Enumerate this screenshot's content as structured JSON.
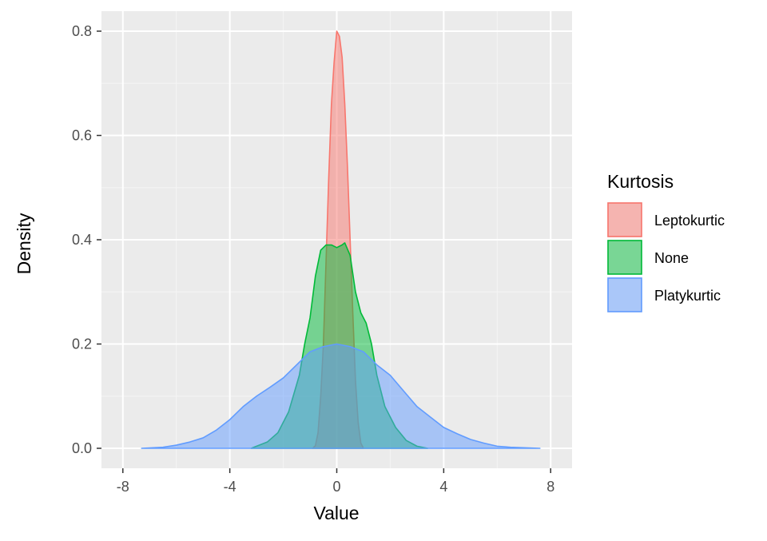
{
  "chart_data": {
    "type": "area",
    "subtype": "density",
    "xlabel": "Value",
    "ylabel": "Density",
    "xlim": [
      -8,
      8
    ],
    "ylim": [
      0,
      0.8
    ],
    "x_ticks": [
      -8,
      -4,
      0,
      4,
      8
    ],
    "y_ticks": [
      0.0,
      0.2,
      0.4,
      0.6,
      0.8
    ],
    "x_tick_labels": [
      "-8",
      "-4",
      "0",
      "4",
      "8"
    ],
    "y_tick_labels": [
      "0.0",
      "0.2",
      "0.4",
      "0.6",
      "0.8"
    ],
    "grid": true,
    "panel_background": "#ebebeb",
    "legend": {
      "title": "Kurtosis",
      "position": "right",
      "entries": [
        "Leptokurtic",
        "None",
        "Platykurtic"
      ]
    },
    "series": [
      {
        "name": "Leptokurtic",
        "fill": "#f8766d",
        "stroke": "#f8766d",
        "fill_opacity": 0.5,
        "points": [
          [
            -0.9,
            0.0
          ],
          [
            -0.8,
            0.005
          ],
          [
            -0.7,
            0.03
          ],
          [
            -0.6,
            0.1
          ],
          [
            -0.5,
            0.2
          ],
          [
            -0.4,
            0.36
          ],
          [
            -0.3,
            0.52
          ],
          [
            -0.2,
            0.66
          ],
          [
            -0.1,
            0.74
          ],
          [
            0.0,
            0.8
          ],
          [
            0.1,
            0.79
          ],
          [
            0.2,
            0.75
          ],
          [
            0.3,
            0.66
          ],
          [
            0.4,
            0.54
          ],
          [
            0.5,
            0.4
          ],
          [
            0.6,
            0.26
          ],
          [
            0.7,
            0.13
          ],
          [
            0.8,
            0.05
          ],
          [
            0.9,
            0.01
          ],
          [
            1.0,
            0.0
          ]
        ]
      },
      {
        "name": "None",
        "fill": "#00ba38",
        "stroke": "#00ba38",
        "fill_opacity": 0.5,
        "points": [
          [
            -3.2,
            0.0
          ],
          [
            -3.0,
            0.004
          ],
          [
            -2.6,
            0.012
          ],
          [
            -2.2,
            0.03
          ],
          [
            -1.8,
            0.07
          ],
          [
            -1.4,
            0.14
          ],
          [
            -1.2,
            0.2
          ],
          [
            -1.0,
            0.25
          ],
          [
            -0.8,
            0.33
          ],
          [
            -0.6,
            0.38
          ],
          [
            -0.4,
            0.39
          ],
          [
            -0.2,
            0.39
          ],
          [
            0.0,
            0.385
          ],
          [
            0.2,
            0.39
          ],
          [
            0.3,
            0.394
          ],
          [
            0.5,
            0.37
          ],
          [
            0.7,
            0.3
          ],
          [
            0.9,
            0.26
          ],
          [
            1.1,
            0.24
          ],
          [
            1.3,
            0.2
          ],
          [
            1.5,
            0.14
          ],
          [
            1.8,
            0.08
          ],
          [
            2.2,
            0.04
          ],
          [
            2.6,
            0.015
          ],
          [
            3.0,
            0.004
          ],
          [
            3.4,
            0.0
          ]
        ]
      },
      {
        "name": "Platykurtic",
        "fill": "#619cff",
        "stroke": "#619cff",
        "fill_opacity": 0.5,
        "points": [
          [
            -7.3,
            0.0
          ],
          [
            -6.5,
            0.002
          ],
          [
            -6.0,
            0.006
          ],
          [
            -5.5,
            0.012
          ],
          [
            -5.0,
            0.02
          ],
          [
            -4.5,
            0.035
          ],
          [
            -4.0,
            0.055
          ],
          [
            -3.5,
            0.08
          ],
          [
            -3.0,
            0.1
          ],
          [
            -2.5,
            0.117
          ],
          [
            -2.0,
            0.135
          ],
          [
            -1.5,
            0.16
          ],
          [
            -1.0,
            0.185
          ],
          [
            -0.5,
            0.195
          ],
          [
            0.0,
            0.2
          ],
          [
            0.5,
            0.195
          ],
          [
            1.0,
            0.185
          ],
          [
            1.5,
            0.16
          ],
          [
            2.0,
            0.14
          ],
          [
            2.5,
            0.11
          ],
          [
            3.0,
            0.08
          ],
          [
            3.5,
            0.06
          ],
          [
            4.0,
            0.04
          ],
          [
            4.5,
            0.028
          ],
          [
            5.0,
            0.017
          ],
          [
            5.5,
            0.01
          ],
          [
            6.0,
            0.004
          ],
          [
            6.5,
            0.002
          ],
          [
            7.0,
            0.001
          ],
          [
            7.6,
            0.0
          ]
        ]
      }
    ]
  }
}
